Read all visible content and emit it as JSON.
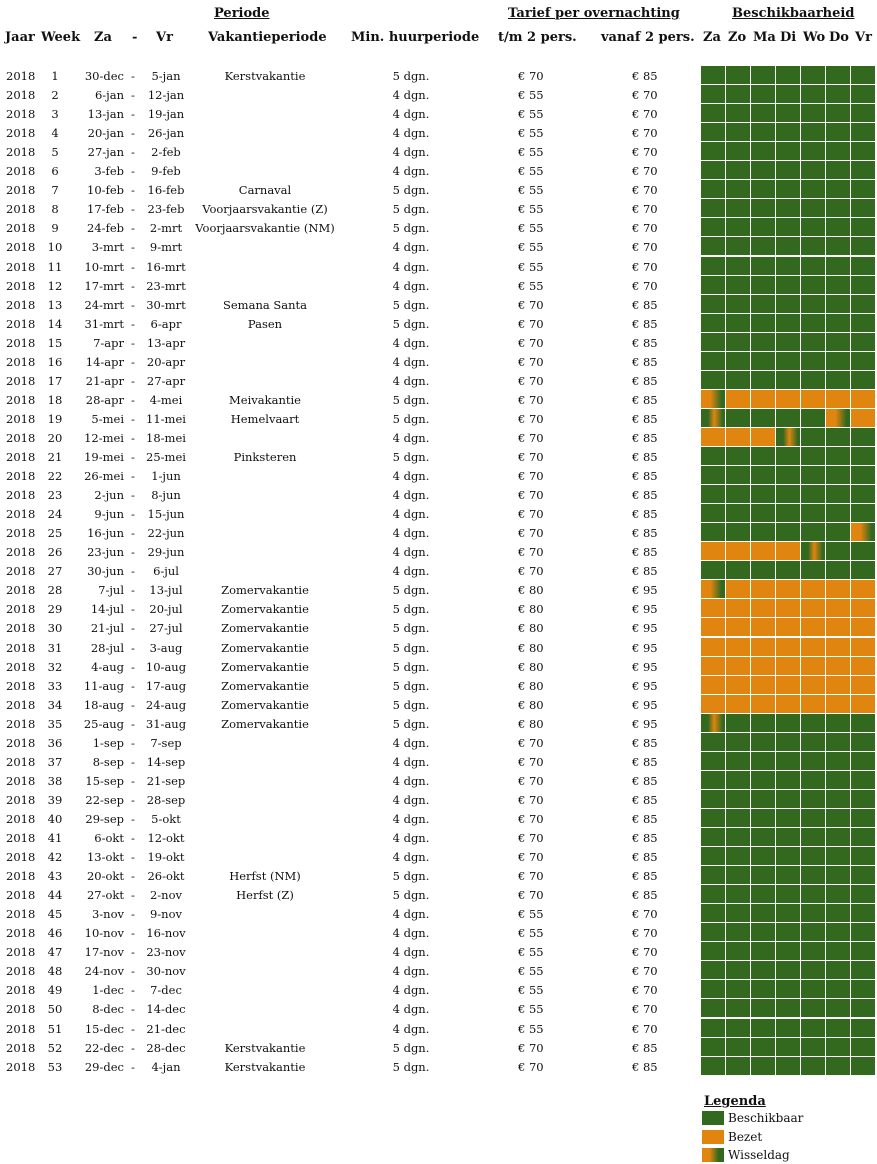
{
  "headers": {
    "periode": "Periode",
    "tarief": "Tarief per overnachting",
    "beschikbaarheid": "Beschikbaarheid",
    "jaar": "Jaar",
    "week": "Week",
    "za": "Za",
    "dash": "-",
    "vr": "Vr",
    "vakantieperiode": "Vakantieperiode",
    "min_huur": "Min. huurperiode",
    "tm2": "t/m 2 pers.",
    "vanaf2": "vanaf 2 pers.",
    "days": [
      "Za",
      "Zo",
      "Ma",
      "Di",
      "Wo",
      "Do",
      "Vr"
    ]
  },
  "colors": {
    "available": "#33691e",
    "occupied": "#e08510",
    "grid": "#ffffff"
  },
  "rows": [
    {
      "jaar": "2018",
      "week": "1",
      "za": "30-dec",
      "vr": "5-jan",
      "vak": "Kerstvakantie",
      "min": "5 dgn.",
      "p1": "€ 70",
      "p2": "€ 85",
      "days": "AAAAAAA"
    },
    {
      "jaar": "2018",
      "week": "2",
      "za": "6-jan",
      "vr": "12-jan",
      "vak": "",
      "min": "4 dgn.",
      "p1": "€ 55",
      "p2": "€ 70",
      "days": "AAAAAAA"
    },
    {
      "jaar": "2018",
      "week": "3",
      "za": "13-jan",
      "vr": "19-jan",
      "vak": "",
      "min": "4 dgn.",
      "p1": "€ 55",
      "p2": "€ 70",
      "days": "AAAAAAA"
    },
    {
      "jaar": "2018",
      "week": "4",
      "za": "20-jan",
      "vr": "26-jan",
      "vak": "",
      "min": "4 dgn.",
      "p1": "€ 55",
      "p2": "€ 70",
      "days": "AAAAAAA"
    },
    {
      "jaar": "2018",
      "week": "5",
      "za": "27-jan",
      "vr": "2-feb",
      "vak": "",
      "min": "4 dgn.",
      "p1": "€ 55",
      "p2": "€ 70",
      "days": "AAAAAAA"
    },
    {
      "jaar": "2018",
      "week": "6",
      "za": "3-feb",
      "vr": "9-feb",
      "vak": "",
      "min": "4 dgn.",
      "p1": "€ 55",
      "p2": "€ 70",
      "days": "AAAAAAA"
    },
    {
      "jaar": "2018",
      "week": "7",
      "za": "10-feb",
      "vr": "16-feb",
      "vak": "Carnaval",
      "min": "5 dgn.",
      "p1": "€ 55",
      "p2": "€ 70",
      "days": "AAAAAAA"
    },
    {
      "jaar": "2018",
      "week": "8",
      "za": "17-feb",
      "vr": "23-feb",
      "vak": "Voorjaarsvakantie (Z)",
      "min": "5 dgn.",
      "p1": "€ 55",
      "p2": "€ 70",
      "days": "AAAAAAA"
    },
    {
      "jaar": "2018",
      "week": "9",
      "za": "24-feb",
      "vr": "2-mrt",
      "vak": "Voorjaarsvakantie (NM)",
      "min": "5 dgn.",
      "p1": "€ 55",
      "p2": "€ 70",
      "days": "AAAAAAA"
    },
    {
      "jaar": "2018",
      "week": "10",
      "za": "3-mrt",
      "vr": "9-mrt",
      "vak": "",
      "min": "4 dgn.",
      "p1": "€ 55",
      "p2": "€ 70",
      "days": "AAAAAAA"
    },
    {
      "jaar": "2018",
      "week": "11",
      "za": "10-mrt",
      "vr": "16-mrt",
      "vak": "",
      "min": "4 dgn.",
      "p1": "€ 55",
      "p2": "€ 70",
      "days": "AAAAAAA"
    },
    {
      "jaar": "2018",
      "week": "12",
      "za": "17-mrt",
      "vr": "23-mrt",
      "vak": "",
      "min": "4 dgn.",
      "p1": "€ 55",
      "p2": "€ 70",
      "days": "AAAAAAA"
    },
    {
      "jaar": "2018",
      "week": "13",
      "za": "24-mrt",
      "vr": "30-mrt",
      "vak": "Semana Santa",
      "min": "5 dgn.",
      "p1": "€ 70",
      "p2": "€ 85",
      "days": "AAAAAAA"
    },
    {
      "jaar": "2018",
      "week": "14",
      "za": "31-mrt",
      "vr": "6-apr",
      "vak": "Pasen",
      "min": "5 dgn.",
      "p1": "€ 70",
      "p2": "€ 85",
      "days": "AAAAAAA"
    },
    {
      "jaar": "2018",
      "week": "15",
      "za": "7-apr",
      "vr": "13-apr",
      "vak": "",
      "min": "4 dgn.",
      "p1": "€ 70",
      "p2": "€ 85",
      "days": "AAAAAAA"
    },
    {
      "jaar": "2018",
      "week": "16",
      "za": "14-apr",
      "vr": "20-apr",
      "vak": "",
      "min": "4 dgn.",
      "p1": "€ 70",
      "p2": "€ 85",
      "days": "AAAAAAA"
    },
    {
      "jaar": "2018",
      "week": "17",
      "za": "21-apr",
      "vr": "27-apr",
      "vak": "",
      "min": "4 dgn.",
      "p1": "€ 70",
      "p2": "€ 85",
      "days": "AAAAAAA"
    },
    {
      "jaar": "2018",
      "week": "18",
      "za": "28-apr",
      "vr": "4-mei",
      "vak": "Meivakantie",
      "min": "5 dgn.",
      "p1": "€ 70",
      "p2": "€ 85",
      "days": "WBBBBBB"
    },
    {
      "jaar": "2018",
      "week": "19",
      "za": "5-mei",
      "vr": "11-mei",
      "vak": "Hemelvaart",
      "min": "5 dgn.",
      "p1": "€ 70",
      "p2": "€ 85",
      "days": "XAAAAWB"
    },
    {
      "jaar": "2018",
      "week": "20",
      "za": "12-mei",
      "vr": "18-mei",
      "vak": "",
      "min": "4 dgn.",
      "p1": "€ 70",
      "p2": "€ 85",
      "days": "BBBXAAA"
    },
    {
      "jaar": "2018",
      "week": "21",
      "za": "19-mei",
      "vr": "25-mei",
      "vak": "Pinksteren",
      "min": "5 dgn.",
      "p1": "€ 70",
      "p2": "€ 85",
      "days": "AAAAAAA"
    },
    {
      "jaar": "2018",
      "week": "22",
      "za": "26-mei",
      "vr": "1-jun",
      "vak": "",
      "min": "4 dgn.",
      "p1": "€ 70",
      "p2": "€ 85",
      "days": "AAAAAAA"
    },
    {
      "jaar": "2018",
      "week": "23",
      "za": "2-jun",
      "vr": "8-jun",
      "vak": "",
      "min": "4 dgn.",
      "p1": "€ 70",
      "p2": "€ 85",
      "days": "AAAAAAA"
    },
    {
      "jaar": "2018",
      "week": "24",
      "za": "9-jun",
      "vr": "15-jun",
      "vak": "",
      "min": "4 dgn.",
      "p1": "€ 70",
      "p2": "€ 85",
      "days": "AAAAAAA"
    },
    {
      "jaar": "2018",
      "week": "25",
      "za": "16-jun",
      "vr": "22-jun",
      "vak": "",
      "min": "4 dgn.",
      "p1": "€ 70",
      "p2": "€ 85",
      "days": "AAAAAAW"
    },
    {
      "jaar": "2018",
      "week": "26",
      "za": "23-jun",
      "vr": "29-jun",
      "vak": "",
      "min": "4 dgn.",
      "p1": "€ 70",
      "p2": "€ 85",
      "days": "BBBBXAA"
    },
    {
      "jaar": "2018",
      "week": "27",
      "za": "30-jun",
      "vr": "6-jul",
      "vak": "",
      "min": "4 dgn.",
      "p1": "€ 70",
      "p2": "€ 85",
      "days": "AAAAAAA"
    },
    {
      "jaar": "2018",
      "week": "28",
      "za": "7-jul",
      "vr": "13-jul",
      "vak": "Zomervakantie",
      "min": "5 dgn.",
      "p1": "€ 80",
      "p2": "€ 95",
      "days": "WBBBBBB"
    },
    {
      "jaar": "2018",
      "week": "29",
      "za": "14-jul",
      "vr": "20-jul",
      "vak": "Zomervakantie",
      "min": "5 dgn.",
      "p1": "€ 80",
      "p2": "€ 95",
      "days": "BBBBBBB"
    },
    {
      "jaar": "2018",
      "week": "30",
      "za": "21-jul",
      "vr": "27-jul",
      "vak": "Zomervakantie",
      "min": "5 dgn.",
      "p1": "€ 80",
      "p2": "€ 95",
      "days": "BBBBBBB"
    },
    {
      "jaar": "2018",
      "week": "31",
      "za": "28-jul",
      "vr": "3-aug",
      "vak": "Zomervakantie",
      "min": "5 dgn.",
      "p1": "€ 80",
      "p2": "€ 95",
      "days": "BBBBBBB"
    },
    {
      "jaar": "2018",
      "week": "32",
      "za": "4-aug",
      "vr": "10-aug",
      "vak": "Zomervakantie",
      "min": "5 dgn.",
      "p1": "€ 80",
      "p2": "€ 95",
      "days": "BBBBBBB"
    },
    {
      "jaar": "2018",
      "week": "33",
      "za": "11-aug",
      "vr": "17-aug",
      "vak": "Zomervakantie",
      "min": "5 dgn.",
      "p1": "€ 80",
      "p2": "€ 95",
      "days": "BBBBBBB"
    },
    {
      "jaar": "2018",
      "week": "34",
      "za": "18-aug",
      "vr": "24-aug",
      "vak": "Zomervakantie",
      "min": "5 dgn.",
      "p1": "€ 80",
      "p2": "€ 95",
      "days": "BBBBBBB"
    },
    {
      "jaar": "2018",
      "week": "35",
      "za": "25-aug",
      "vr": "31-aug",
      "vak": "Zomervakantie",
      "min": "5 dgn.",
      "p1": "€ 80",
      "p2": "€ 95",
      "days": "XAAAAAA"
    },
    {
      "jaar": "2018",
      "week": "36",
      "za": "1-sep",
      "vr": "7-sep",
      "vak": "",
      "min": "4 dgn.",
      "p1": "€ 70",
      "p2": "€ 85",
      "days": "AAAAAAA"
    },
    {
      "jaar": "2018",
      "week": "37",
      "za": "8-sep",
      "vr": "14-sep",
      "vak": "",
      "min": "4 dgn.",
      "p1": "€ 70",
      "p2": "€ 85",
      "days": "AAAAAAA"
    },
    {
      "jaar": "2018",
      "week": "38",
      "za": "15-sep",
      "vr": "21-sep",
      "vak": "",
      "min": "4 dgn.",
      "p1": "€ 70",
      "p2": "€ 85",
      "days": "AAAAAAA"
    },
    {
      "jaar": "2018",
      "week": "39",
      "za": "22-sep",
      "vr": "28-sep",
      "vak": "",
      "min": "4 dgn.",
      "p1": "€ 70",
      "p2": "€ 85",
      "days": "AAAAAAA"
    },
    {
      "jaar": "2018",
      "week": "40",
      "za": "29-sep",
      "vr": "5-okt",
      "vak": "",
      "min": "4 dgn.",
      "p1": "€ 70",
      "p2": "€ 85",
      "days": "AAAAAAA"
    },
    {
      "jaar": "2018",
      "week": "41",
      "za": "6-okt",
      "vr": "12-okt",
      "vak": "",
      "min": "4 dgn.",
      "p1": "€ 70",
      "p2": "€ 85",
      "days": "AAAAAAA"
    },
    {
      "jaar": "2018",
      "week": "42",
      "za": "13-okt",
      "vr": "19-okt",
      "vak": "",
      "min": "4 dgn.",
      "p1": "€ 70",
      "p2": "€ 85",
      "days": "AAAAAAA"
    },
    {
      "jaar": "2018",
      "week": "43",
      "za": "20-okt",
      "vr": "26-okt",
      "vak": "Herfst (NM)",
      "min": "5 dgn.",
      "p1": "€ 70",
      "p2": "€ 85",
      "days": "AAAAAAA"
    },
    {
      "jaar": "2018",
      "week": "44",
      "za": "27-okt",
      "vr": "2-nov",
      "vak": "Herfst (Z)",
      "min": "5 dgn.",
      "p1": "€ 70",
      "p2": "€ 85",
      "days": "AAAAAAA"
    },
    {
      "jaar": "2018",
      "week": "45",
      "za": "3-nov",
      "vr": "9-nov",
      "vak": "",
      "min": "4 dgn.",
      "p1": "€ 55",
      "p2": "€ 70",
      "days": "AAAAAAA"
    },
    {
      "jaar": "2018",
      "week": "46",
      "za": "10-nov",
      "vr": "16-nov",
      "vak": "",
      "min": "4 dgn.",
      "p1": "€ 55",
      "p2": "€ 70",
      "days": "AAAAAAA"
    },
    {
      "jaar": "2018",
      "week": "47",
      "za": "17-nov",
      "vr": "23-nov",
      "vak": "",
      "min": "4 dgn.",
      "p1": "€ 55",
      "p2": "€ 70",
      "days": "AAAAAAA"
    },
    {
      "jaar": "2018",
      "week": "48",
      "za": "24-nov",
      "vr": "30-nov",
      "vak": "",
      "min": "4 dgn.",
      "p1": "€ 55",
      "p2": "€ 70",
      "days": "AAAAAAA"
    },
    {
      "jaar": "2018",
      "week": "49",
      "za": "1-dec",
      "vr": "7-dec",
      "vak": "",
      "min": "4 dgn.",
      "p1": "€ 55",
      "p2": "€ 70",
      "days": "AAAAAAA"
    },
    {
      "jaar": "2018",
      "week": "50",
      "za": "8-dec",
      "vr": "14-dec",
      "vak": "",
      "min": "4 dgn.",
      "p1": "€ 55",
      "p2": "€ 70",
      "days": "AAAAAAA"
    },
    {
      "jaar": "2018",
      "week": "51",
      "za": "15-dec",
      "vr": "21-dec",
      "vak": "",
      "min": "4 dgn.",
      "p1": "€ 55",
      "p2": "€ 70",
      "days": "AAAAAAA"
    },
    {
      "jaar": "2018",
      "week": "52",
      "za": "22-dec",
      "vr": "28-dec",
      "vak": "Kerstvakantie",
      "min": "5 dgn.",
      "p1": "€ 70",
      "p2": "€ 85",
      "days": "AAAAAAA"
    },
    {
      "jaar": "2018",
      "week": "53",
      "za": "29-dec",
      "vr": "4-jan",
      "vak": "Kerstvakantie",
      "min": "5 dgn.",
      "p1": "€ 70",
      "p2": "€ 85",
      "days": "AAAAAAA"
    }
  ],
  "legend": {
    "title": "Legenda",
    "available": "Beschikbaar",
    "occupied": "Bezet",
    "changeover": "Wisseldag"
  }
}
